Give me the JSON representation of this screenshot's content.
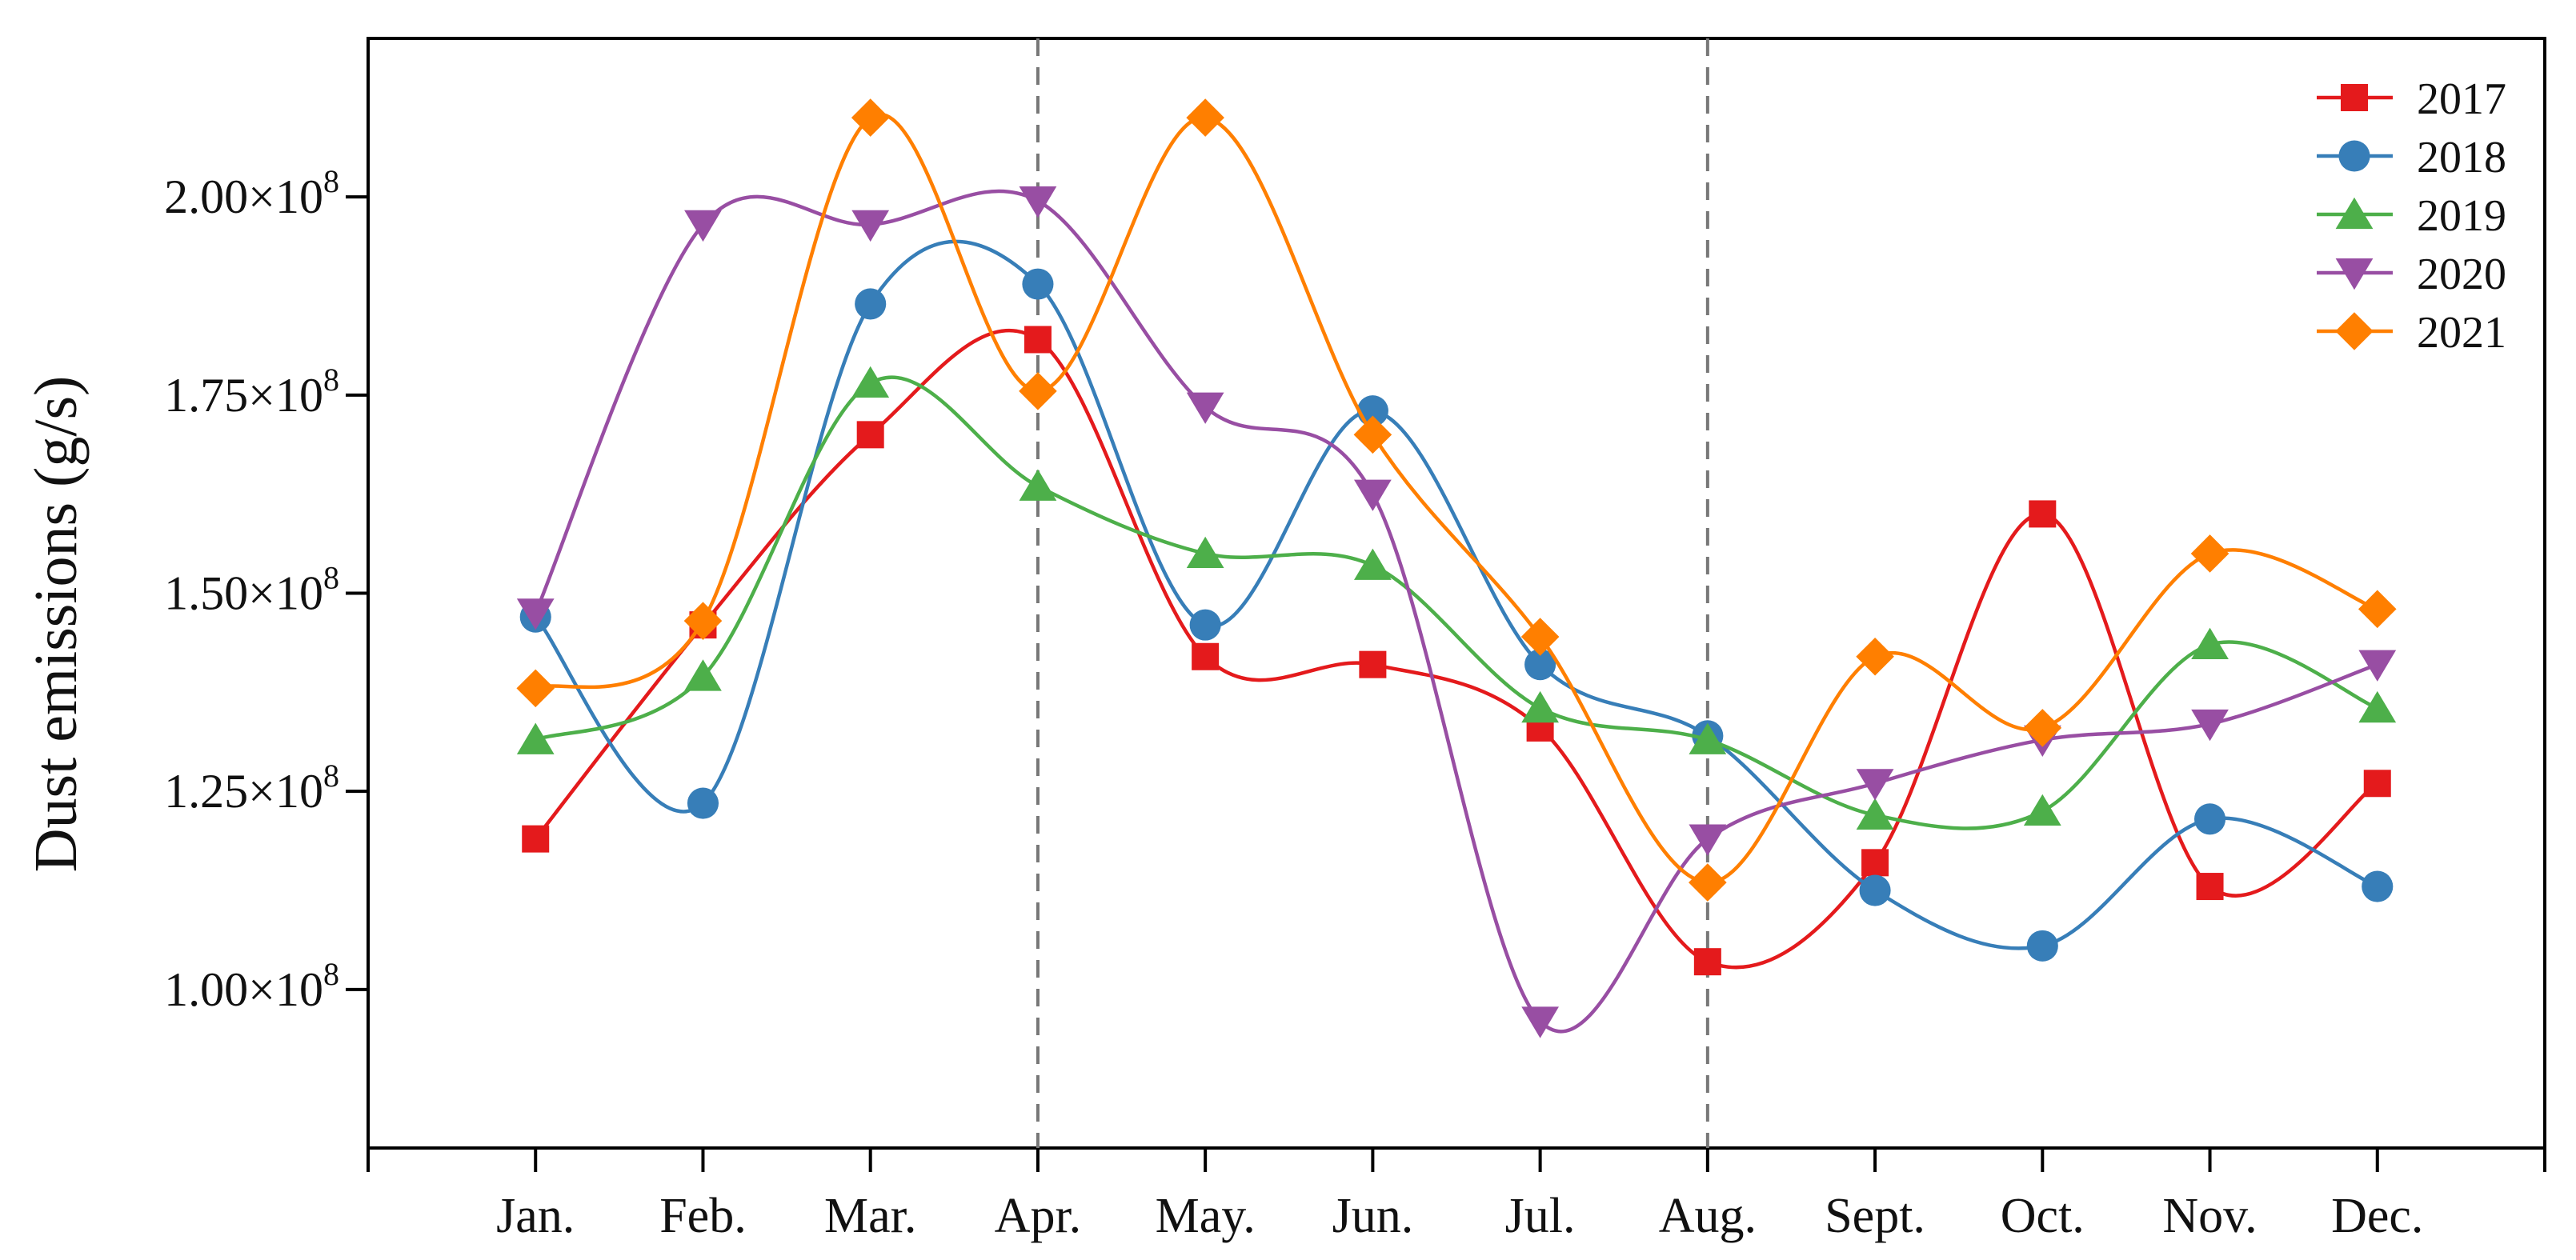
{
  "chart_data": {
    "type": "line",
    "title": "",
    "xlabel": "",
    "ylabel": "Dust emissions (g/s)",
    "categories": [
      "Jan.",
      "Feb.",
      "Mar.",
      "Apr.",
      "May.",
      "Jun.",
      "Jul.",
      "Aug.",
      "Sept.",
      "Oct.",
      "Nov.",
      "Dec."
    ],
    "yticks": [
      {
        "value": 100000000,
        "mantissa": "1.00×10",
        "exp": "8"
      },
      {
        "value": 125000000,
        "mantissa": "1.25×10",
        "exp": "8"
      },
      {
        "value": 150000000,
        "mantissa": "1.50×10",
        "exp": "8"
      },
      {
        "value": 175000000,
        "mantissa": "1.75×10",
        "exp": "8"
      },
      {
        "value": 200000000,
        "mantissa": "2.00×10",
        "exp": "8"
      }
    ],
    "ylim": [
      80000000,
      220000000
    ],
    "grid": false,
    "legend_position": "top-right",
    "reference_lines_at": [
      "Apr.",
      "Aug."
    ],
    "series": [
      {
        "name": "2017",
        "color": "#e41a1c",
        "marker": "square",
        "values": [
          119000000,
          146000000,
          170000000,
          182000000,
          142000000,
          141000000,
          133000000,
          103500000,
          116000000,
          160000000,
          113000000,
          126000000
        ]
      },
      {
        "name": "2018",
        "color": "#377eb8",
        "marker": "circle",
        "values": [
          147000000,
          123500000,
          186500000,
          189000000,
          146000000,
          173000000,
          141000000,
          132000000,
          112500000,
          105500000,
          121500000,
          113000000
        ]
      },
      {
        "name": "2019",
        "color": "#4daf4a",
        "marker": "triangle-up",
        "values": [
          131500000,
          139500000,
          176500000,
          163500000,
          155000000,
          153500000,
          135500000,
          131500000,
          122000000,
          122500000,
          143500000,
          135500000
        ]
      },
      {
        "name": "2020",
        "color": "#984ea3",
        "marker": "triangle-down",
        "values": [
          147500000,
          196500000,
          196500000,
          199500000,
          173500000,
          162500000,
          96000000,
          119000000,
          126000000,
          131500000,
          133500000,
          141000000
        ]
      },
      {
        "name": "2021",
        "color": "#ff7f00",
        "marker": "diamond",
        "values": [
          138000000,
          146500000,
          210000000,
          175500000,
          210000000,
          170000000,
          144500000,
          113500000,
          142000000,
          133000000,
          155000000,
          148000000
        ]
      }
    ]
  }
}
